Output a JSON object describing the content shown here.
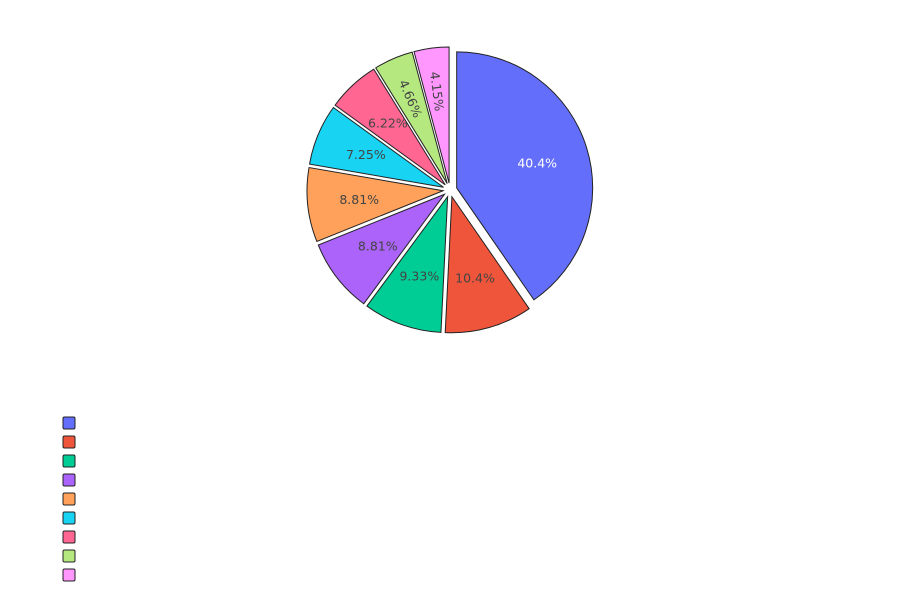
{
  "chart_data": {
    "type": "pie",
    "title": "",
    "labels": [
      "",
      "",
      "",
      "",
      "",
      "",
      "",
      "",
      ""
    ],
    "values": [
      40.4,
      10.4,
      9.33,
      8.81,
      8.81,
      7.25,
      6.22,
      4.66,
      4.15
    ],
    "text_labels": [
      "40.4%",
      "10.4%",
      "9.33%",
      "8.81%",
      "8.81%",
      "7.25%",
      "6.22%",
      "4.66%",
      "4.15%"
    ],
    "colors": [
      "#636efa",
      "#ef553b",
      "#00cc96",
      "#ab63fa",
      "#ffa15a",
      "#19d3f3",
      "#ff6692",
      "#b6e880",
      "#ff97ff"
    ],
    "text_colors": [
      "#ffffff",
      "#444444",
      "#444444",
      "#444444",
      "#444444",
      "#444444",
      "#444444",
      "#444444",
      "#444444"
    ],
    "exploded": true,
    "direction": "clockwise",
    "sort": "descending",
    "legend_position": "bottom-left"
  }
}
